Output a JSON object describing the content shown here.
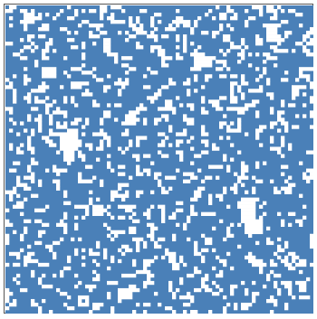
{
  "game": {
    "cols": 85,
    "rows": 85,
    "colors": {
      "filled": "#4a80b8",
      "empty": "#ffffff",
      "border": "#555555"
    },
    "openAreas": [
      {
        "c": 15,
        "r": 35,
        "w": 5,
        "h": 5
      },
      {
        "c": 16,
        "r": 40,
        "w": 3,
        "h": 3
      },
      {
        "c": 65,
        "r": 53,
        "w": 4,
        "h": 6
      },
      {
        "c": 66,
        "r": 59,
        "w": 5,
        "h": 4
      },
      {
        "c": 27,
        "r": 9,
        "w": 2,
        "h": 4
      },
      {
        "c": 33,
        "r": 30,
        "w": 3,
        "h": 3
      },
      {
        "c": 52,
        "r": 14,
        "w": 5,
        "h": 3
      },
      {
        "c": 72,
        "r": 5,
        "w": 3,
        "h": 5
      },
      {
        "c": 5,
        "r": 2,
        "w": 3,
        "h": 3
      },
      {
        "c": 10,
        "r": 17,
        "w": 4,
        "h": 3
      },
      {
        "c": 24,
        "r": 55,
        "w": 3,
        "h": 3
      },
      {
        "c": 44,
        "r": 26,
        "w": 2,
        "h": 3
      },
      {
        "c": 81,
        "r": 76,
        "w": 2,
        "h": 3
      },
      {
        "c": 31,
        "r": 78,
        "w": 4,
        "h": 3
      },
      {
        "c": 45,
        "r": 68,
        "w": 2,
        "h": 3
      }
    ],
    "density": 0.28,
    "seed": 20240611
  }
}
